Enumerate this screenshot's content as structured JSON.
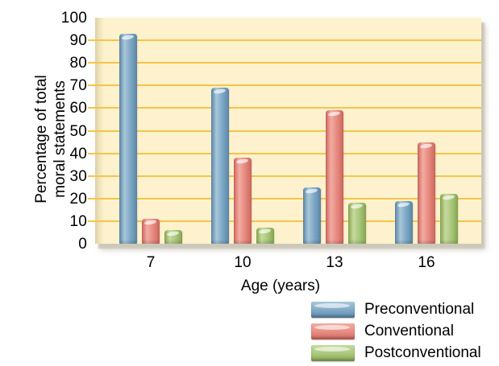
{
  "chart_data": {
    "type": "bar",
    "title": "",
    "xlabel": "Age (years)",
    "ylabel": "Percentage of total moral statements",
    "ylabel_lines": [
      "Percentage of total",
      "moral statements"
    ],
    "categories": [
      "7",
      "10",
      "13",
      "16"
    ],
    "series": [
      {
        "name": "Preconventional",
        "values": [
          93,
          69,
          25,
          19
        ],
        "color": "#7ea8c6",
        "color_light": "#a9c7da",
        "color_edge": "#5c88a9"
      },
      {
        "name": "Conventional",
        "values": [
          11,
          38,
          59,
          45
        ],
        "color": "#e78b81",
        "color_light": "#f2aca3",
        "color_edge": "#cf675e"
      },
      {
        "name": "Postconventional",
        "values": [
          6,
          7,
          18,
          22
        ],
        "color": "#a9c87c",
        "color_light": "#c5da9d",
        "color_edge": "#88a853"
      }
    ],
    "ylim": [
      0,
      100
    ],
    "ytick_step": 10,
    "grid": true,
    "legend_position": "bottom-right",
    "colors": {
      "plot_background": "#fdf2cd",
      "gridline": "#f6c44a",
      "panel_shadow": "#ccc8ba",
      "text": "#000000",
      "page_background": "#ffffff"
    }
  }
}
